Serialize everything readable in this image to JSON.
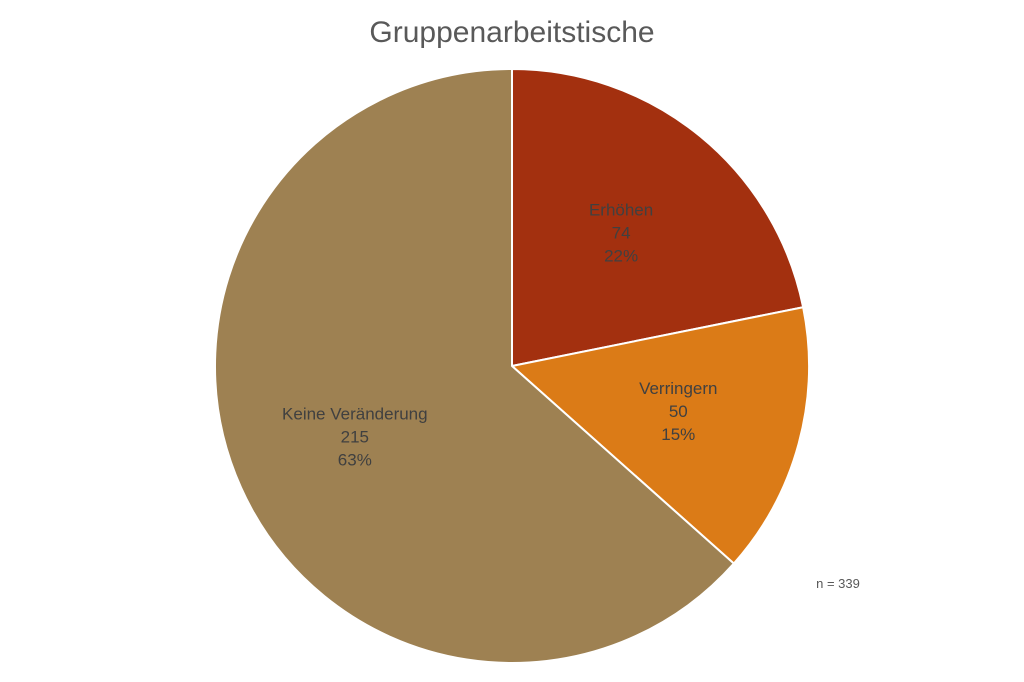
{
  "chart_data": {
    "type": "pie",
    "title": "Gruppenarbeitstische",
    "slices": [
      {
        "label": "Erhöhen",
        "value": 74,
        "percent_label": "22%",
        "color": "#A3300F"
      },
      {
        "label": "Verringern",
        "value": 50,
        "percent_label": "15%",
        "color": "#DB7B17"
      },
      {
        "label": "Keine Veränderung",
        "value": 215,
        "percent_label": "63%",
        "color": "#9E8152"
      }
    ],
    "start_angle": "12 o'clock",
    "direction": "clockwise",
    "slice_border_color": "#ffffff",
    "legend": "none",
    "note": "n = 339"
  }
}
